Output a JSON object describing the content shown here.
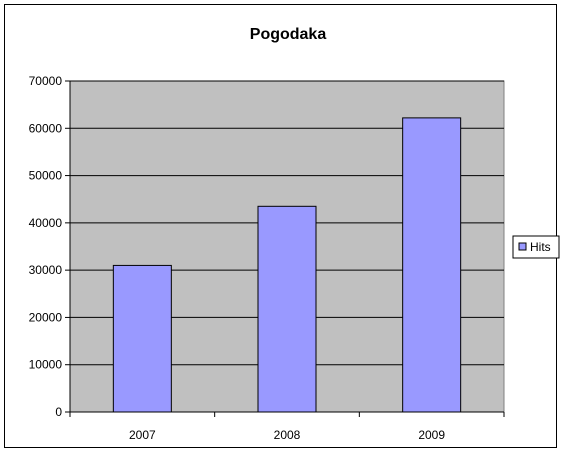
{
  "chart_data": {
    "type": "bar",
    "title": "Pogodaka",
    "xlabel": "",
    "ylabel": "",
    "categories": [
      "2007",
      "2008",
      "2009"
    ],
    "series": [
      {
        "name": "Hits",
        "values": [
          31000,
          43500,
          62200
        ],
        "color": "#9999ff"
      }
    ],
    "ylim": [
      0,
      70000
    ],
    "yticks": [
      0,
      10000,
      20000,
      30000,
      40000,
      50000,
      60000,
      70000
    ],
    "grid": true,
    "legend_position": "right",
    "plot_background": "#c0c0c0",
    "border_color": "#000000"
  }
}
